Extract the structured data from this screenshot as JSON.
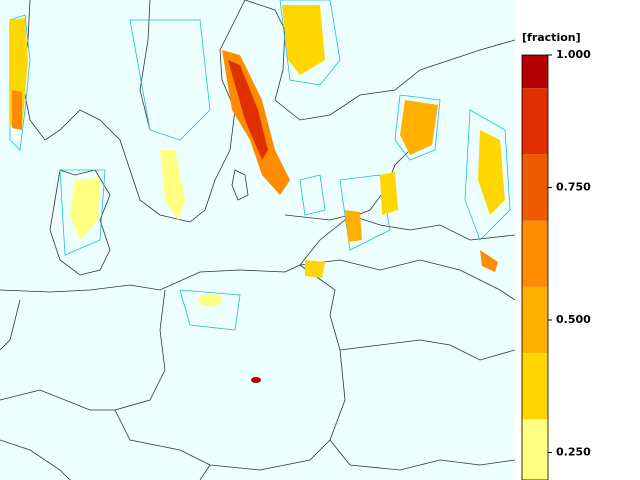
{
  "colorbar": {
    "label": "[fraction]",
    "lim": [
      0.1875,
      1.0
    ],
    "bins": [
      0.1875,
      0.3125,
      0.4375,
      0.5625,
      0.6875,
      0.8125,
      0.9375,
      1.0
    ],
    "colors": [
      "#ffff80",
      "#ffd700",
      "#ffb000",
      "#ff8c00",
      "#f05a00",
      "#e03000",
      "#b40000"
    ],
    "ticks": [
      {
        "value": 1.0,
        "label": "1.000"
      },
      {
        "value": 0.75,
        "label": "0.750"
      },
      {
        "value": 0.5,
        "label": "0.500"
      },
      {
        "value": 0.25,
        "label": "0.250"
      }
    ]
  }
}
